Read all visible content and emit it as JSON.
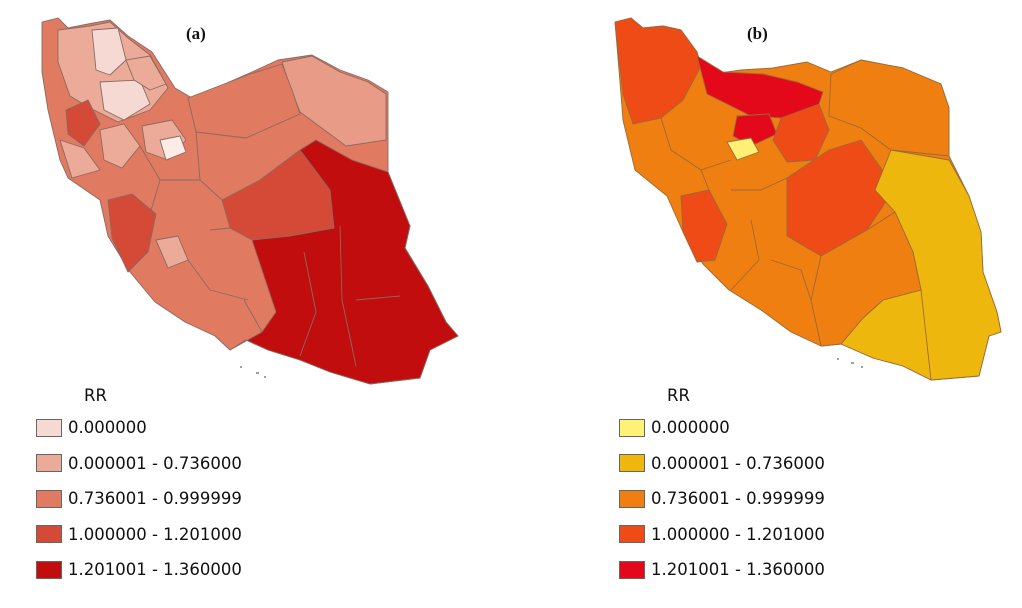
{
  "panels": [
    {
      "label": "(a)",
      "legend": {
        "title": "RR",
        "items": [
          {
            "label": "0.000000",
            "color": "#f6d9d3"
          },
          {
            "label": "0.000001 - 0.736000",
            "color": "#ecab99"
          },
          {
            "label": "0.736001 - 0.999999",
            "color": "#e07a60"
          },
          {
            "label": "1.000000 - 1.201000",
            "color": "#d44a36"
          },
          {
            "label": "1.201001 - 1.360000",
            "color": "#c10d0d"
          }
        ]
      }
    },
    {
      "label": "(b)",
      "legend": {
        "title": "RR",
        "items": [
          {
            "label": "0.000000",
            "color": "#fff176"
          },
          {
            "label": "0.000001 - 0.736000",
            "color": "#edb70e"
          },
          {
            "label": "0.736001 - 0.999999",
            "color": "#ef7f10"
          },
          {
            "label": "1.000000 - 1.201000",
            "color": "#ee4b16"
          },
          {
            "label": "1.201001 - 1.360000",
            "color": "#e3091a"
          }
        ]
      }
    }
  ]
}
